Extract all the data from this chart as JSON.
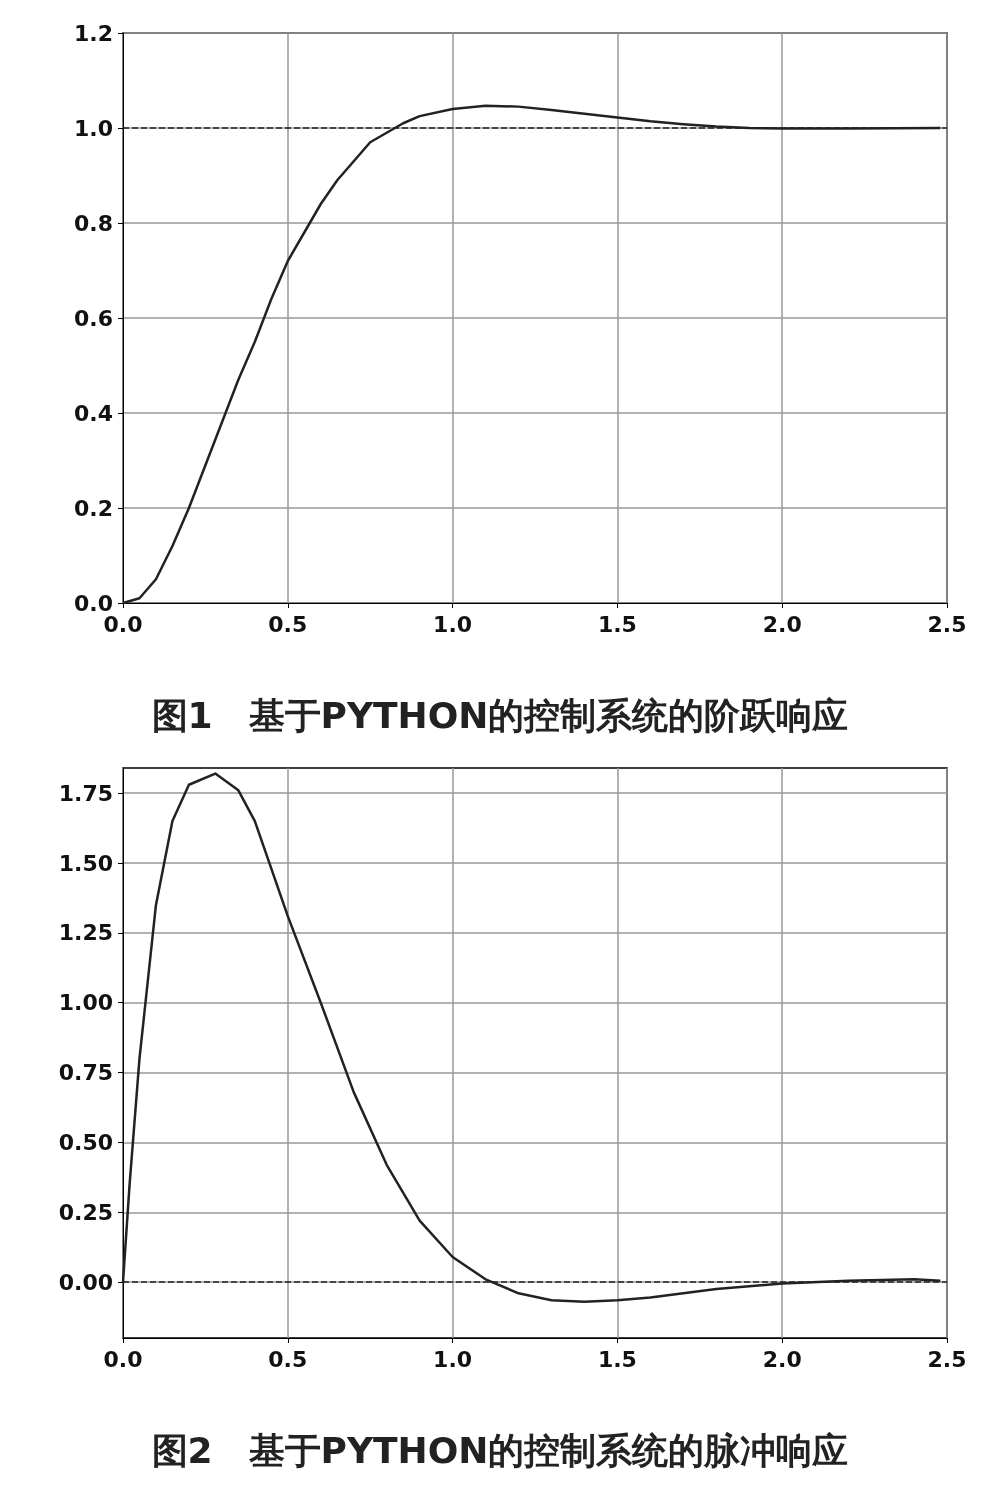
{
  "chart_data": [
    {
      "type": "line",
      "title": "图1　基于PYTHON的控制系统的阶跃响应",
      "xlim": [
        0,
        2.5
      ],
      "xticks": [
        {
          "value": 0,
          "label": "0.0"
        },
        {
          "value": 0.5,
          "label": "0.5"
        },
        {
          "value": 1,
          "label": "1.0"
        },
        {
          "value": 1.5,
          "label": "1.5"
        },
        {
          "value": 2,
          "label": "2.0"
        },
        {
          "value": 2.5,
          "label": "2.5"
        }
      ],
      "ylim": [
        0,
        1.2
      ],
      "yticks": [
        {
          "value": 0,
          "label": "0.0"
        },
        {
          "value": 0.2,
          "label": "0.2"
        },
        {
          "value": 0.4,
          "label": "0.4"
        },
        {
          "value": 0.6,
          "label": "0.6"
        },
        {
          "value": 0.8,
          "label": "0.8"
        },
        {
          "value": 1,
          "label": "1.0"
        },
        {
          "value": 1.2,
          "label": "1.2"
        }
      ],
      "grid": true,
      "marker": "none",
      "line_style": "solid",
      "ref_lines": [
        {
          "axis": "y",
          "value": 1,
          "color": "#222222",
          "line_style": "dashed"
        }
      ],
      "series": [
        {
          "color": "#222222",
          "x": [
            0,
            0.05,
            0.1,
            0.15,
            0.2,
            0.25,
            0.3,
            0.35,
            0.4,
            0.45,
            0.5,
            0.55,
            0.6,
            0.65,
            0.7,
            0.75,
            0.8,
            0.85,
            0.9,
            1.0,
            1.1,
            1.2,
            1.3,
            1.4,
            1.5,
            1.6,
            1.7,
            1.8,
            1.9,
            2.0,
            2.2,
            2.48
          ],
          "values": [
            0,
            0.01,
            0.05,
            0.12,
            0.2,
            0.29,
            0.38,
            0.47,
            0.55,
            0.64,
            0.72,
            0.78,
            0.84,
            0.89,
            0.93,
            0.97,
            0.99,
            1.01,
            1.025,
            1.04,
            1.047,
            1.045,
            1.038,
            1.03,
            1.022,
            1.014,
            1.008,
            1.003,
            1.0,
            0.999,
            0.999,
            1.0
          ]
        }
      ]
    },
    {
      "type": "line",
      "title": "图2　基于PYTHON的控制系统的脉冲响应",
      "xlim": [
        0,
        2.5
      ],
      "xticks": [
        {
          "value": 0,
          "label": "0.0"
        },
        {
          "value": 0.5,
          "label": "0.5"
        },
        {
          "value": 1,
          "label": "1.0"
        },
        {
          "value": 1.5,
          "label": "1.5"
        },
        {
          "value": 2,
          "label": "2.0"
        },
        {
          "value": 2.5,
          "label": "2.5"
        }
      ],
      "ylim": [
        -0.2,
        1.84
      ],
      "yticks": [
        {
          "value": 0,
          "label": "0.00"
        },
        {
          "value": 0.25,
          "label": "0.25"
        },
        {
          "value": 0.5,
          "label": "0.50"
        },
        {
          "value": 0.75,
          "label": "0.75"
        },
        {
          "value": 1,
          "label": "1.00"
        },
        {
          "value": 1.25,
          "label": "1.25"
        },
        {
          "value": 1.5,
          "label": "1.50"
        },
        {
          "value": 1.75,
          "label": "1.75"
        }
      ],
      "grid": true,
      "marker": "none",
      "line_style": "solid",
      "ref_lines": [
        {
          "axis": "y",
          "value": 0,
          "color": "#222222",
          "line_style": "dashed"
        }
      ],
      "series": [
        {
          "color": "#222222",
          "x": [
            0,
            0.02,
            0.05,
            0.1,
            0.15,
            0.2,
            0.28,
            0.35,
            0.4,
            0.5,
            0.6,
            0.7,
            0.8,
            0.9,
            1.0,
            1.1,
            1.2,
            1.3,
            1.4,
            1.5,
            1.6,
            1.7,
            1.8,
            1.9,
            2.0,
            2.2,
            2.4,
            2.48
          ],
          "values": [
            0,
            0.35,
            0.8,
            1.35,
            1.65,
            1.78,
            1.82,
            1.76,
            1.65,
            1.31,
            1.0,
            0.68,
            0.42,
            0.22,
            0.09,
            0.01,
            -0.04,
            -0.065,
            -0.07,
            -0.065,
            -0.055,
            -0.04,
            -0.025,
            -0.015,
            -0.005,
            0.005,
            0.01,
            0.005
          ]
        }
      ]
    }
  ]
}
